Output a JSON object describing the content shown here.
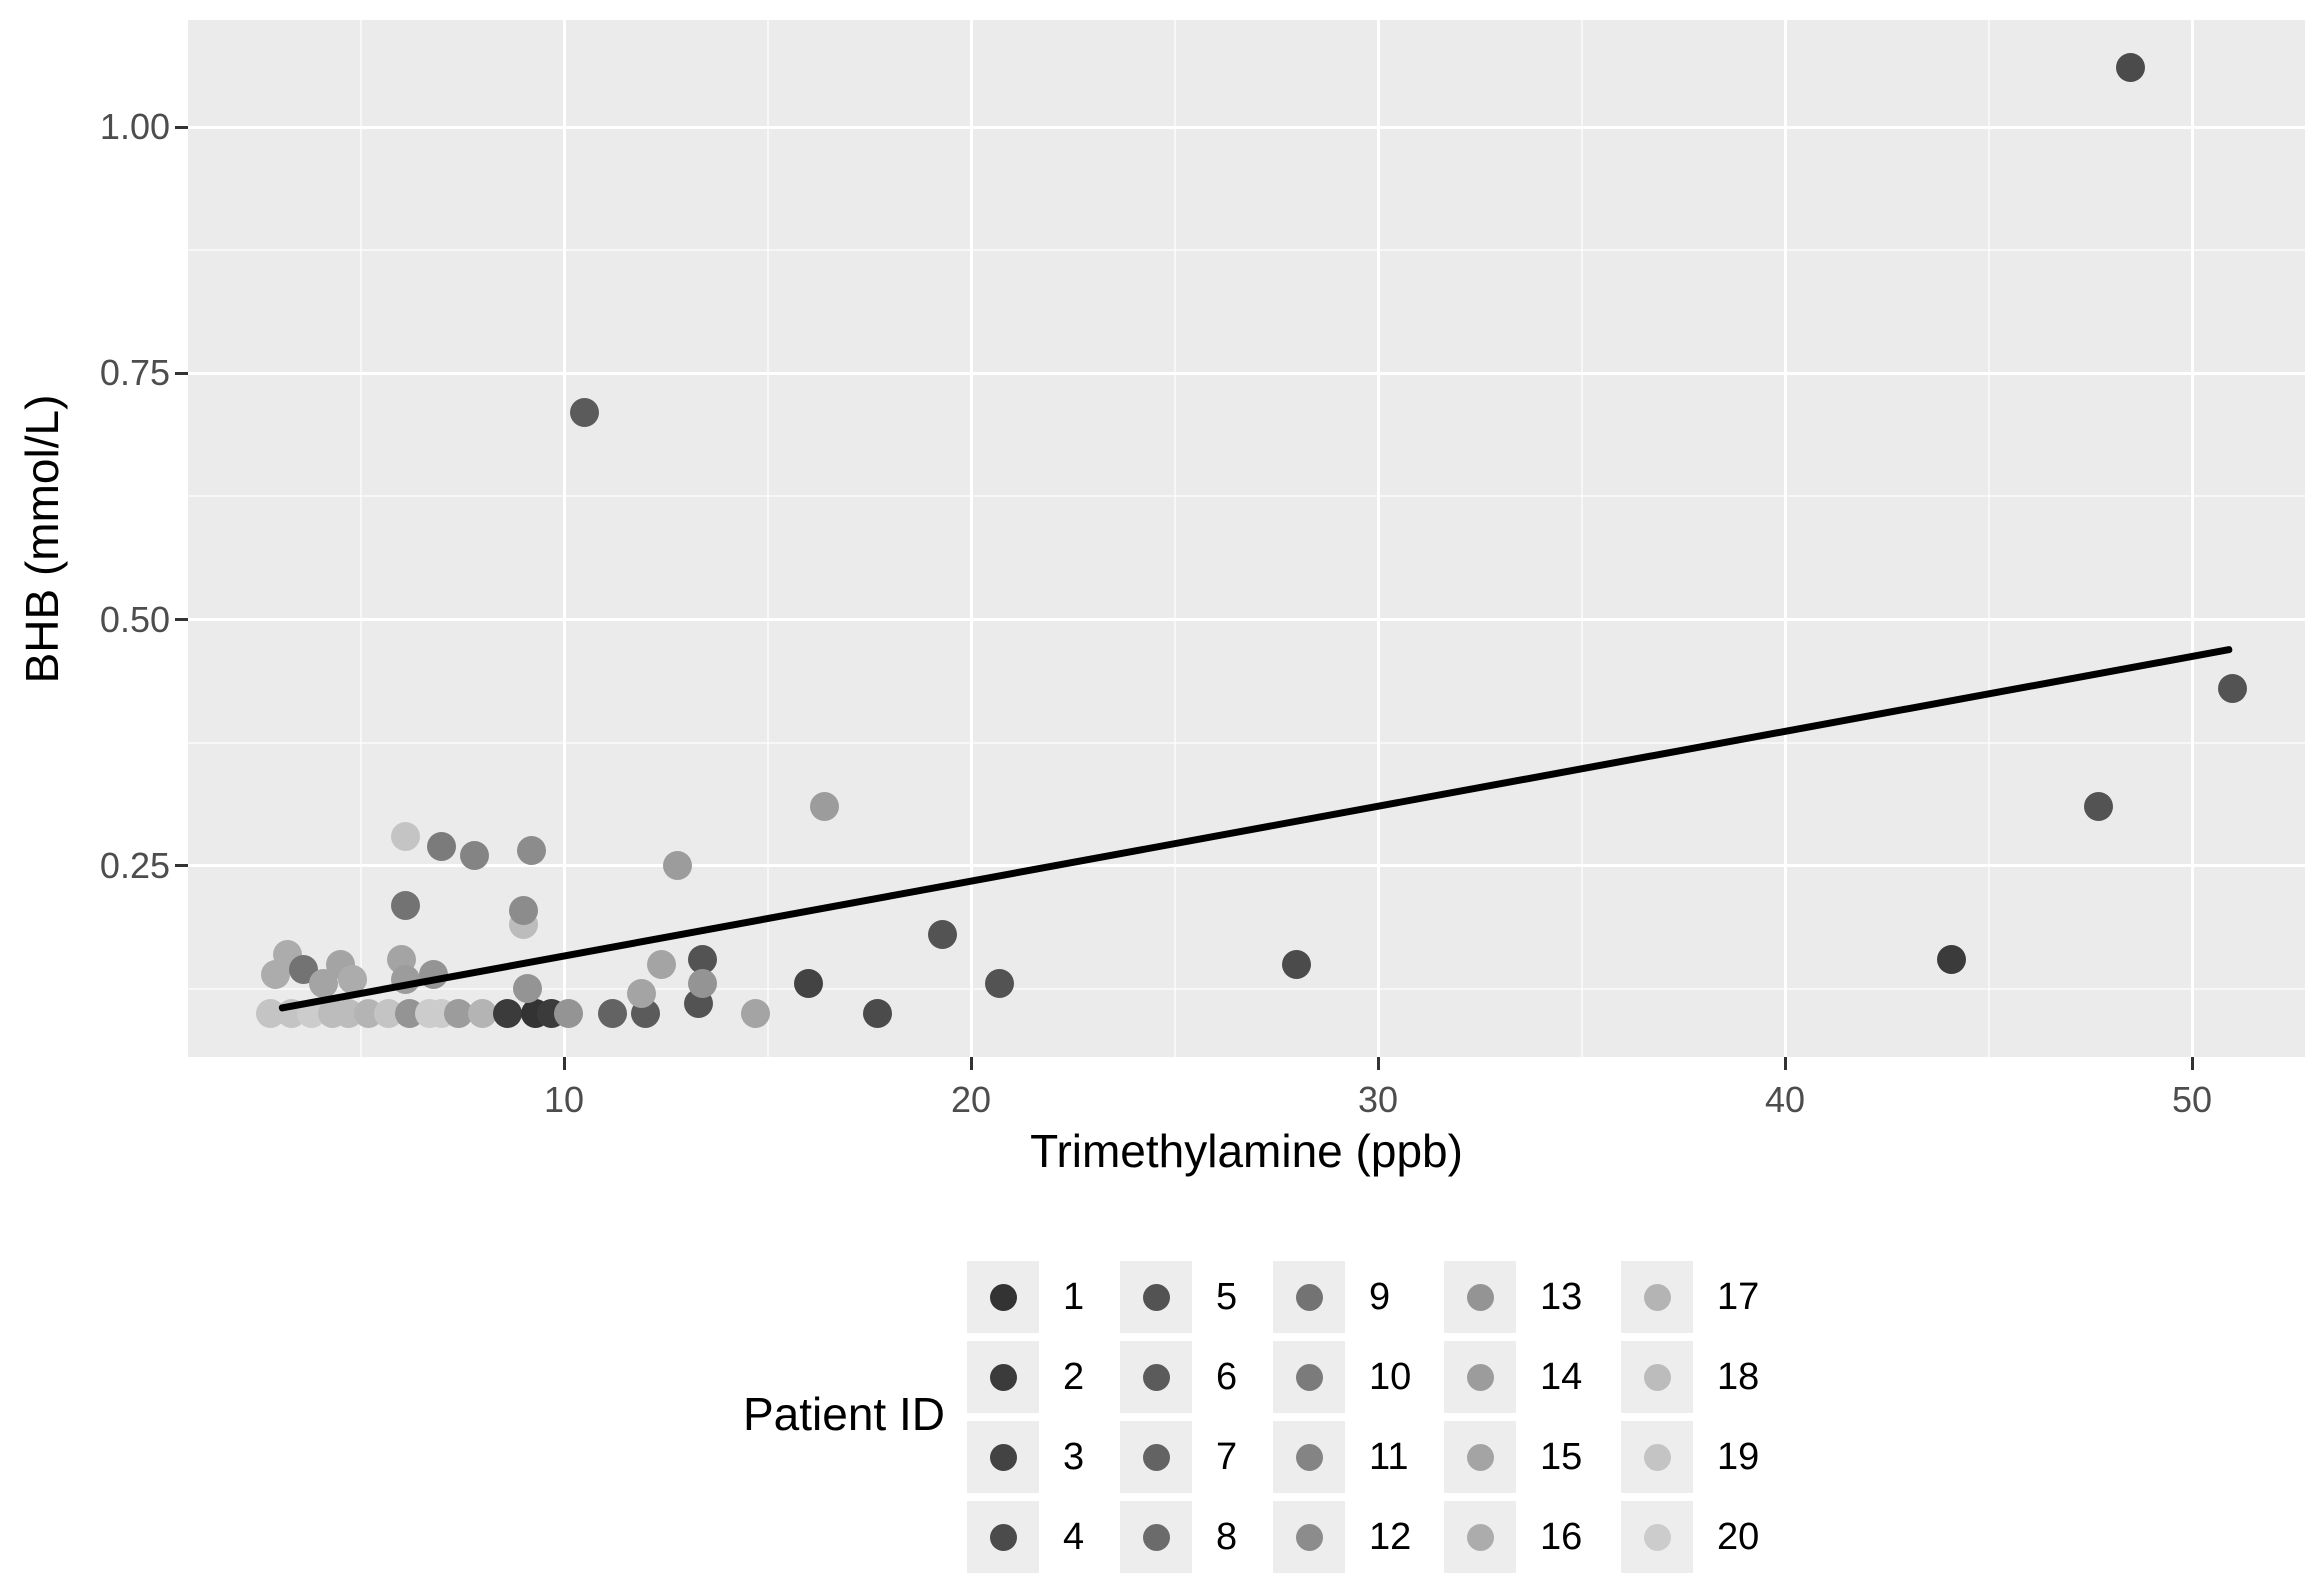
{
  "figure": {
    "background": "#ffffff",
    "panel_bg": "#ebebeb",
    "grid_color": "#ffffff",
    "axis_text_color": "#4d4d4d",
    "axis_title_color": "#000000",
    "trend_color": "#000000"
  },
  "axes": {
    "x": {
      "title": "Trimethylamine (ppb)",
      "tick_values": [
        10,
        20,
        30,
        40,
        50
      ],
      "tick_labels": [
        "10",
        "20",
        "30",
        "40",
        "50"
      ],
      "minor_tick_values": [
        5,
        15,
        25,
        35,
        45
      ],
      "range": [
        0.8,
        52.8
      ]
    },
    "y": {
      "title": "BHB (mmol/L)",
      "tick_values": [
        0.25,
        0.5,
        0.75,
        1.0
      ],
      "tick_labels": [
        "0.25",
        "0.50",
        "0.75",
        "1.00"
      ],
      "minor_tick_values": [
        0.125,
        0.375,
        0.625,
        0.875
      ],
      "range": [
        0.055,
        1.107
      ]
    }
  },
  "legend": {
    "title": "Patient ID",
    "key_fill": "#ededed",
    "layout": "5 columns x 4 rows, column-major",
    "items": [
      {
        "id": 1,
        "label": "1",
        "color": "#333333"
      },
      {
        "id": 2,
        "label": "2",
        "color": "#3b3b3b"
      },
      {
        "id": 3,
        "label": "3",
        "color": "#434343"
      },
      {
        "id": 4,
        "label": "4",
        "color": "#4b4b4b"
      },
      {
        "id": 5,
        "label": "5",
        "color": "#535353"
      },
      {
        "id": 6,
        "label": "6",
        "color": "#5b5b5b"
      },
      {
        "id": 7,
        "label": "7",
        "color": "#636363"
      },
      {
        "id": 8,
        "label": "8",
        "color": "#6b6b6b"
      },
      {
        "id": 9,
        "label": "9",
        "color": "#737373"
      },
      {
        "id": 10,
        "label": "10",
        "color": "#7b7b7b"
      },
      {
        "id": 11,
        "label": "11",
        "color": "#848484"
      },
      {
        "id": 12,
        "label": "12",
        "color": "#8c8c8c"
      },
      {
        "id": 13,
        "label": "13",
        "color": "#949494"
      },
      {
        "id": 14,
        "label": "14",
        "color": "#9c9c9c"
      },
      {
        "id": 15,
        "label": "15",
        "color": "#a4a4a4"
      },
      {
        "id": 16,
        "label": "16",
        "color": "#acacac"
      },
      {
        "id": 17,
        "label": "17",
        "color": "#b4b4b4"
      },
      {
        "id": 18,
        "label": "18",
        "color": "#bcbcbc"
      },
      {
        "id": 19,
        "label": "19",
        "color": "#c4c4c4"
      },
      {
        "id": 20,
        "label": "20",
        "color": "#cccccc"
      }
    ]
  },
  "chart_data": {
    "type": "scatter",
    "title": "",
    "xlabel": "Trimethylamine (ppb)",
    "ylabel": "BHB (mmol/L)",
    "xlim": [
      0.8,
      52.8
    ],
    "ylim": [
      0.055,
      1.107
    ],
    "grid": true,
    "legend_position": "bottom",
    "color_encoding": "Patient ID mapped to grey gradient (1 darkest #333333 to 20 lightest #cccccc)",
    "points": [
      {
        "x": 2.8,
        "y": 0.1,
        "patient": 19
      },
      {
        "x": 3.3,
        "y": 0.1,
        "patient": 19
      },
      {
        "x": 3.8,
        "y": 0.1,
        "patient": 20
      },
      {
        "x": 4.3,
        "y": 0.1,
        "patient": 18
      },
      {
        "x": 4.7,
        "y": 0.1,
        "patient": 18
      },
      {
        "x": 5.2,
        "y": 0.1,
        "patient": 17
      },
      {
        "x": 5.7,
        "y": 0.1,
        "patient": 19
      },
      {
        "x": 6.2,
        "y": 0.1,
        "patient": 13
      },
      {
        "x": 6.7,
        "y": 0.1,
        "patient": 20
      },
      {
        "x": 7.0,
        "y": 0.1,
        "patient": 20
      },
      {
        "x": 7.4,
        "y": 0.1,
        "patient": 14
      },
      {
        "x": 8.0,
        "y": 0.1,
        "patient": 17
      },
      {
        "x": 8.6,
        "y": 0.1,
        "patient": 2
      },
      {
        "x": 9.3,
        "y": 0.1,
        "patient": 1
      },
      {
        "x": 9.7,
        "y": 0.1,
        "patient": 2
      },
      {
        "x": 10.1,
        "y": 0.1,
        "patient": 13
      },
      {
        "x": 11.2,
        "y": 0.1,
        "patient": 7
      },
      {
        "x": 12.0,
        "y": 0.1,
        "patient": 6
      },
      {
        "x": 13.3,
        "y": 0.11,
        "patient": 5
      },
      {
        "x": 14.7,
        "y": 0.1,
        "patient": 15
      },
      {
        "x": 17.7,
        "y": 0.1,
        "patient": 4
      },
      {
        "x": 9.1,
        "y": 0.125,
        "patient": 13
      },
      {
        "x": 2.9,
        "y": 0.14,
        "patient": 16
      },
      {
        "x": 3.2,
        "y": 0.16,
        "patient": 16
      },
      {
        "x": 3.6,
        "y": 0.145,
        "patient": 9
      },
      {
        "x": 4.1,
        "y": 0.13,
        "patient": 15
      },
      {
        "x": 4.5,
        "y": 0.15,
        "patient": 15
      },
      {
        "x": 4.8,
        "y": 0.135,
        "patient": 16
      },
      {
        "x": 6.0,
        "y": 0.155,
        "patient": 15
      },
      {
        "x": 6.1,
        "y": 0.135,
        "patient": 14
      },
      {
        "x": 6.8,
        "y": 0.14,
        "patient": 13
      },
      {
        "x": 11.9,
        "y": 0.12,
        "patient": 15
      },
      {
        "x": 12.4,
        "y": 0.15,
        "patient": 15
      },
      {
        "x": 13.4,
        "y": 0.155,
        "patient": 5
      },
      {
        "x": 13.4,
        "y": 0.13,
        "patient": 13
      },
      {
        "x": 16.0,
        "y": 0.13,
        "patient": 3
      },
      {
        "x": 19.3,
        "y": 0.18,
        "patient": 5
      },
      {
        "x": 20.7,
        "y": 0.13,
        "patient": 5
      },
      {
        "x": 28.0,
        "y": 0.15,
        "patient": 4
      },
      {
        "x": 44.1,
        "y": 0.155,
        "patient": 2
      },
      {
        "x": 6.1,
        "y": 0.21,
        "patient": 9
      },
      {
        "x": 9.0,
        "y": 0.19,
        "patient": 18
      },
      {
        "x": 9.0,
        "y": 0.205,
        "patient": 12
      },
      {
        "x": 6.1,
        "y": 0.28,
        "patient": 19
      },
      {
        "x": 7.0,
        "y": 0.27,
        "patient": 10
      },
      {
        "x": 7.8,
        "y": 0.26,
        "patient": 11
      },
      {
        "x": 9.2,
        "y": 0.265,
        "patient": 12
      },
      {
        "x": 12.8,
        "y": 0.25,
        "patient": 14
      },
      {
        "x": 16.4,
        "y": 0.31,
        "patient": 14
      },
      {
        "x": 10.5,
        "y": 0.71,
        "patient": 6
      },
      {
        "x": 48.5,
        "y": 1.06,
        "patient": 4
      },
      {
        "x": 47.7,
        "y": 0.31,
        "patient": 5
      },
      {
        "x": 51.0,
        "y": 0.43,
        "patient": 5
      }
    ],
    "trend_line": {
      "type": "linear",
      "x1": 3.0,
      "y1": 0.105,
      "x2": 51.0,
      "y2": 0.47,
      "color": "#000000"
    }
  }
}
